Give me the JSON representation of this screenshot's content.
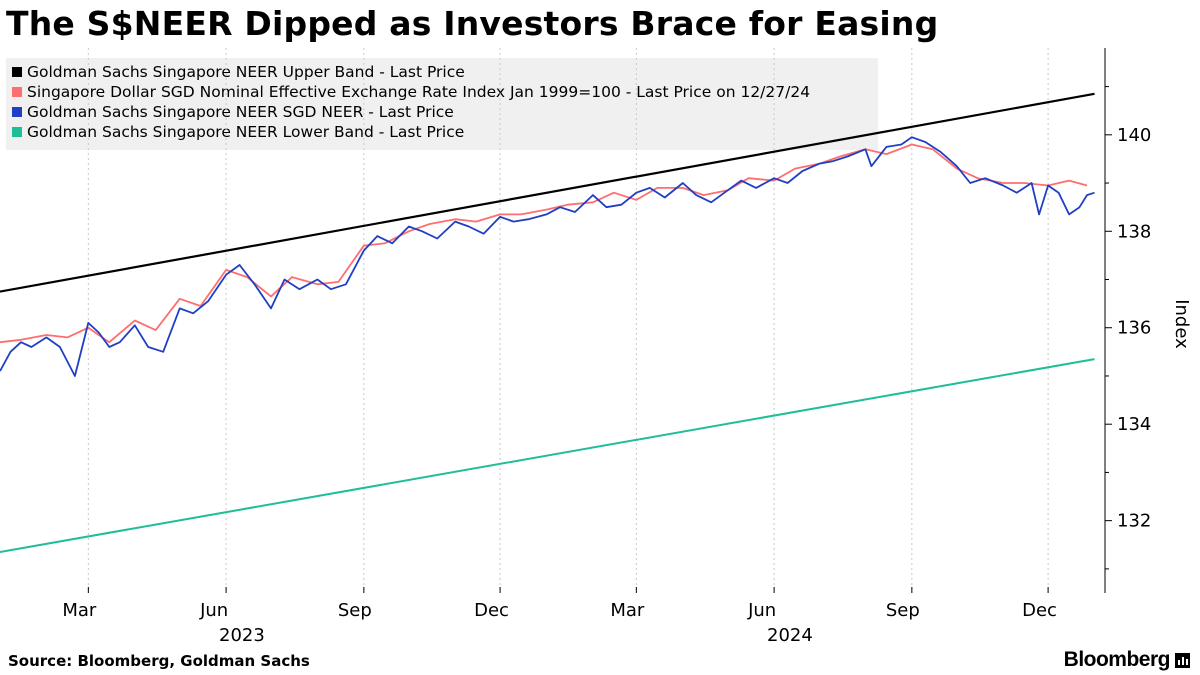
{
  "title": "The S$NEER Dipped as Investors Brace for Easing",
  "source": "Source: Bloomberg, Goldman Sachs",
  "brand": "Bloomberg",
  "chart_data": {
    "type": "line",
    "ylabel": "Index",
    "ylim": [
      130.5,
      141.8
    ],
    "yticks": [
      132,
      134,
      136,
      138,
      140
    ],
    "grid": "vertical dashed at month ticks",
    "legend_position": "top-left",
    "x_tick_labels": [
      "Mar",
      "Jun",
      "Sep",
      "Dec",
      "Mar",
      "Jun",
      "Sep",
      "Dec"
    ],
    "x_tick_dates": [
      "2023-03-01",
      "2023-06-01",
      "2023-09-01",
      "2023-12-01",
      "2024-03-01",
      "2024-06-01",
      "2024-09-01",
      "2024-12-01"
    ],
    "x_year_labels": [
      {
        "label": "2023",
        "date": "2023-07-01"
      },
      {
        "label": "2024",
        "date": "2024-07-01"
      }
    ],
    "xlim": [
      "2023-01-01",
      "2025-01-08"
    ],
    "series": [
      {
        "name": "Goldman Sachs Singapore NEER Upper Band - Last Price",
        "color": "#000000",
        "x": [
          "2023-01-01",
          "2025-01-01"
        ],
        "values": [
          136.75,
          140.85
        ]
      },
      {
        "name": "Singapore Dollar SGD Nominal Effective Exchange Rate Index Jan 1999=100 - Last Price on 12/27/24",
        "color": "#ff6e6e",
        "x": [
          "2023-01-01",
          "2023-01-15",
          "2023-02-01",
          "2023-02-15",
          "2023-03-01",
          "2023-03-15",
          "2023-04-01",
          "2023-04-15",
          "2023-05-01",
          "2023-05-15",
          "2023-06-01",
          "2023-06-15",
          "2023-07-01",
          "2023-07-15",
          "2023-08-01",
          "2023-08-15",
          "2023-09-01",
          "2023-09-15",
          "2023-10-01",
          "2023-10-15",
          "2023-11-01",
          "2023-11-15",
          "2023-12-01",
          "2023-12-15",
          "2024-01-01",
          "2024-01-15",
          "2024-02-01",
          "2024-02-15",
          "2024-03-01",
          "2024-03-15",
          "2024-04-01",
          "2024-04-15",
          "2024-05-01",
          "2024-05-15",
          "2024-06-01",
          "2024-06-15",
          "2024-07-01",
          "2024-07-15",
          "2024-08-01",
          "2024-08-15",
          "2024-09-01",
          "2024-09-15",
          "2024-10-01",
          "2024-10-15",
          "2024-11-01",
          "2024-11-15",
          "2024-12-01",
          "2024-12-15",
          "2024-12-27"
        ],
        "values": [
          135.7,
          135.75,
          135.85,
          135.8,
          136.0,
          135.7,
          136.15,
          135.95,
          136.6,
          136.45,
          137.2,
          137.05,
          136.65,
          137.05,
          136.9,
          136.95,
          137.7,
          137.75,
          138.0,
          138.15,
          138.25,
          138.2,
          138.35,
          138.35,
          138.45,
          138.55,
          138.6,
          138.8,
          138.65,
          138.9,
          138.9,
          138.75,
          138.85,
          139.1,
          139.05,
          139.3,
          139.4,
          139.55,
          139.7,
          139.6,
          139.8,
          139.7,
          139.3,
          139.1,
          139.0,
          139.0,
          138.95,
          139.05,
          138.95
        ]
      },
      {
        "name": "Goldman Sachs Singapore NEER SGD NEER - Last Price",
        "color": "#1f3fc4",
        "x": [
          "2023-01-01",
          "2023-01-08",
          "2023-01-15",
          "2023-01-22",
          "2023-02-01",
          "2023-02-10",
          "2023-02-20",
          "2023-03-01",
          "2023-03-08",
          "2023-03-15",
          "2023-03-22",
          "2023-04-01",
          "2023-04-10",
          "2023-04-20",
          "2023-05-01",
          "2023-05-10",
          "2023-05-20",
          "2023-06-01",
          "2023-06-10",
          "2023-06-20",
          "2023-07-01",
          "2023-07-10",
          "2023-07-20",
          "2023-08-01",
          "2023-08-10",
          "2023-08-20",
          "2023-09-01",
          "2023-09-10",
          "2023-09-20",
          "2023-10-01",
          "2023-10-10",
          "2023-10-20",
          "2023-11-01",
          "2023-11-10",
          "2023-11-20",
          "2023-12-01",
          "2023-12-10",
          "2023-12-20",
          "2024-01-01",
          "2024-01-10",
          "2024-01-20",
          "2024-02-01",
          "2024-02-10",
          "2024-02-20",
          "2024-03-01",
          "2024-03-10",
          "2024-03-20",
          "2024-04-01",
          "2024-04-10",
          "2024-04-20",
          "2024-05-01",
          "2024-05-10",
          "2024-05-20",
          "2024-06-01",
          "2024-06-10",
          "2024-06-20",
          "2024-07-01",
          "2024-07-10",
          "2024-07-20",
          "2024-08-01",
          "2024-08-05",
          "2024-08-15",
          "2024-08-25",
          "2024-09-01",
          "2024-09-10",
          "2024-09-20",
          "2024-10-01",
          "2024-10-10",
          "2024-10-20",
          "2024-11-01",
          "2024-11-10",
          "2024-11-20",
          "2024-11-25",
          "2024-12-01",
          "2024-12-08",
          "2024-12-15",
          "2024-12-22",
          "2024-12-27",
          "2025-01-01"
        ],
        "values": [
          135.1,
          135.5,
          135.7,
          135.6,
          135.8,
          135.6,
          135.0,
          136.1,
          135.9,
          135.6,
          135.7,
          136.05,
          135.6,
          135.5,
          136.4,
          136.3,
          136.55,
          137.1,
          137.3,
          136.9,
          136.4,
          137.0,
          136.8,
          137.0,
          136.8,
          136.9,
          137.6,
          137.9,
          137.75,
          138.1,
          138.0,
          137.85,
          138.2,
          138.1,
          137.95,
          138.3,
          138.2,
          138.25,
          138.35,
          138.5,
          138.4,
          138.75,
          138.5,
          138.55,
          138.8,
          138.9,
          138.7,
          139.0,
          138.75,
          138.6,
          138.85,
          139.05,
          138.9,
          139.1,
          139.0,
          139.25,
          139.4,
          139.45,
          139.55,
          139.7,
          139.35,
          139.75,
          139.8,
          139.95,
          139.85,
          139.65,
          139.35,
          139.0,
          139.1,
          138.95,
          138.8,
          139.0,
          138.35,
          138.95,
          138.8,
          138.35,
          138.5,
          138.75,
          138.8
        ]
      },
      {
        "name": "Goldman Sachs Singapore NEER Lower Band - Last Price",
        "color": "#1fbe96",
        "x": [
          "2023-01-01",
          "2025-01-01"
        ],
        "values": [
          131.35,
          135.35
        ]
      }
    ]
  }
}
